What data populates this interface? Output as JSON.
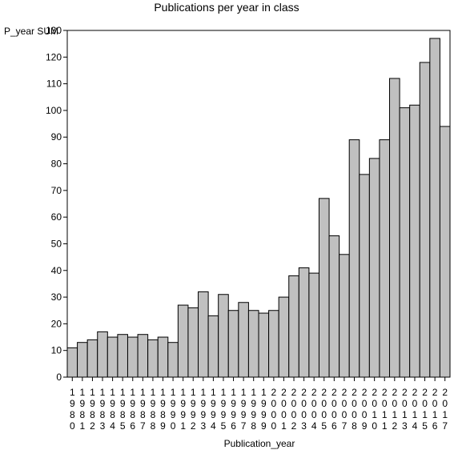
{
  "chart_data": {
    "type": "bar",
    "title": "Publications per year in class",
    "ylabel": "P_year SUM",
    "xlabel": "Publication_year",
    "ylim": [
      0,
      130
    ],
    "yticks": [
      0,
      10,
      20,
      30,
      40,
      50,
      60,
      70,
      80,
      90,
      100,
      110,
      120,
      130
    ],
    "grid": false,
    "bar_color": "#c0c0c0",
    "categories": [
      "1980",
      "1981",
      "1982",
      "1983",
      "1984",
      "1985",
      "1986",
      "1987",
      "1988",
      "1989",
      "1990",
      "1991",
      "1992",
      "1993",
      "1994",
      "1995",
      "1996",
      "1997",
      "1998",
      "1999",
      "2000",
      "2001",
      "2002",
      "2003",
      "2004",
      "2005",
      "2006",
      "2007",
      "2008",
      "2009",
      "2010",
      "2011",
      "2012",
      "2013",
      "2014",
      "2015",
      "2016",
      "2017"
    ],
    "values": [
      11,
      13,
      14,
      17,
      15,
      16,
      15,
      16,
      14,
      15,
      13,
      27,
      26,
      32,
      23,
      31,
      25,
      28,
      25,
      24,
      25,
      30,
      38,
      41,
      39,
      67,
      53,
      46,
      89,
      76,
      82,
      89,
      112,
      101,
      102,
      118,
      127,
      94
    ]
  }
}
